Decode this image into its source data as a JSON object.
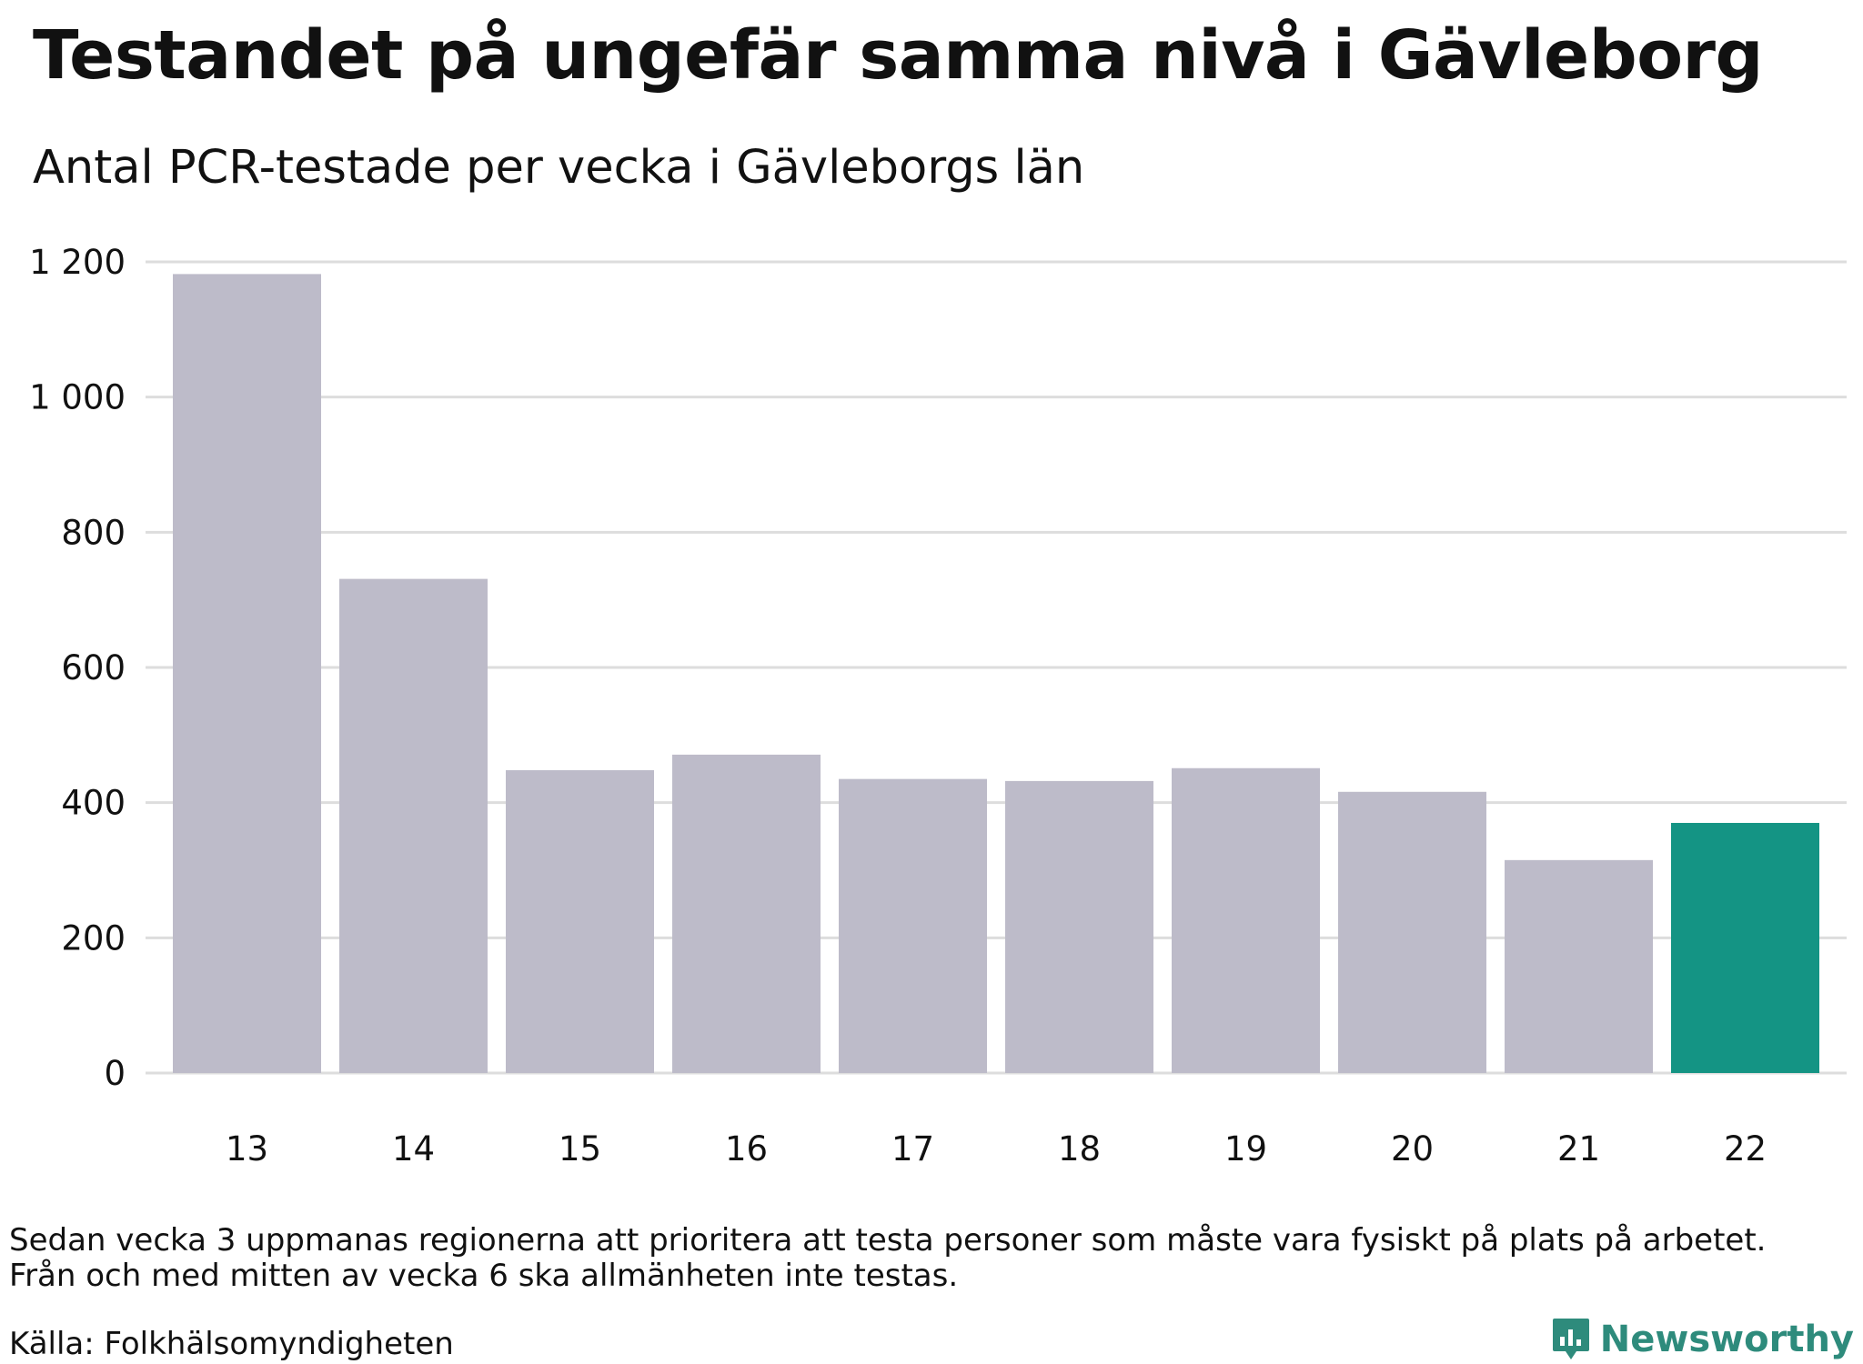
{
  "header": {
    "title": "Testandet på ungefär samma nivå i Gävleborg",
    "subtitle": "Antal PCR-testade per vecka i Gävleborgs län"
  },
  "footer": {
    "note_line1": "Sedan vecka 3 uppmanas regionerna att prioritera att testa personer som måste vara fysiskt på plats på arbetet.",
    "note_line2": "Från och med mitten av vecka 6 ska allmänheten inte testas.",
    "source": "Källa: Folkhälsomyndigheten",
    "brand": "Newsworthy"
  },
  "colors": {
    "bar": "#bdbbc9",
    "highlight": "#149484",
    "grid": "#dddddd",
    "brand": "#2e8b7c"
  },
  "chart_data": {
    "type": "bar",
    "categories": [
      "13",
      "14",
      "15",
      "16",
      "17",
      "18",
      "19",
      "20",
      "21",
      "22"
    ],
    "values": [
      1182,
      731,
      448,
      471,
      435,
      432,
      451,
      416,
      315,
      370
    ],
    "highlight_index": 9,
    "yticks": [
      0,
      200,
      400,
      600,
      800,
      1000,
      1200
    ],
    "ytick_labels": [
      "0",
      "200",
      "400",
      "600",
      "800",
      "1 000",
      "1 200"
    ],
    "ylim": [
      0,
      1200
    ],
    "grid": true,
    "title": "Testandet på ungefär samma nivå i Gävleborg",
    "subtitle": "Antal PCR-testade per vecka i Gävleborgs län"
  }
}
